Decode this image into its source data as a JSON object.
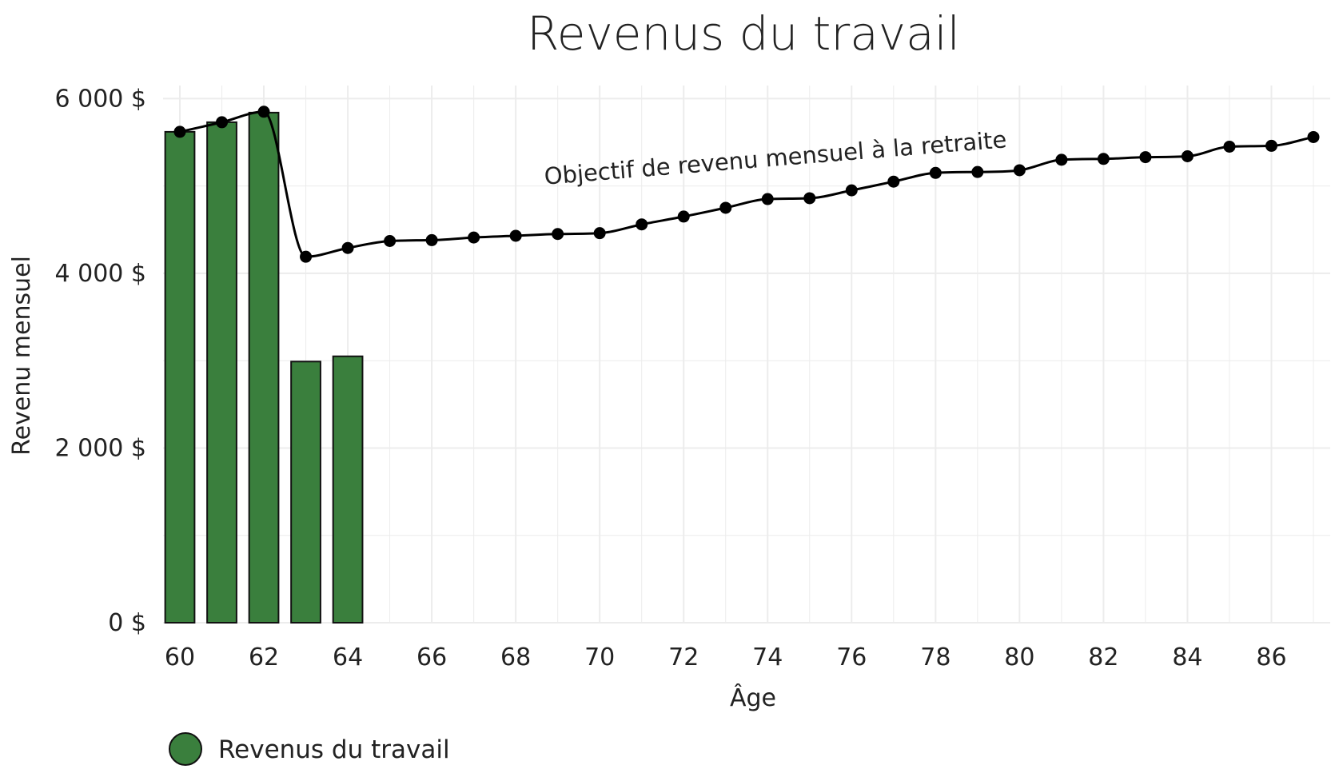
{
  "chart_data": {
    "type": "bar",
    "title": "Revenus du travail",
    "xlabel": "Âge",
    "ylabel": "Revenu mensuel",
    "xlim": [
      59.6,
      87.4
    ],
    "ylim": [
      0,
      6150
    ],
    "x_ticks": [
      60,
      62,
      64,
      66,
      68,
      70,
      72,
      74,
      76,
      78,
      80,
      82,
      84,
      86
    ],
    "y_ticks": [
      {
        "value": 0,
        "label": "0 $"
      },
      {
        "value": 2000,
        "label": "2 000 $"
      },
      {
        "value": 4000,
        "label": "4 000 $"
      },
      {
        "value": 6000,
        "label": "6 000 $"
      }
    ],
    "grid": true,
    "legend_position": "bottom-left",
    "bar_color": "#3a7f3d",
    "line_color": "#000000",
    "bars": {
      "name": "Revenus du travail",
      "x": [
        60,
        61,
        62,
        63,
        64
      ],
      "values": [
        5620,
        5730,
        5840,
        2990,
        3050
      ]
    },
    "line": {
      "x": [
        60,
        61,
        62,
        63,
        64,
        65,
        66,
        67,
        68,
        69,
        70,
        71,
        72,
        73,
        74,
        75,
        76,
        77,
        78,
        79,
        80,
        81,
        82,
        83,
        84,
        85,
        86,
        87
      ],
      "values": [
        5620,
        5730,
        5850,
        4190,
        4290,
        4370,
        4380,
        4410,
        4430,
        4450,
        4460,
        4560,
        4650,
        4750,
        4850,
        4860,
        4950,
        5050,
        5150,
        5160,
        5180,
        5300,
        5310,
        5330,
        5340,
        5450,
        5460,
        5560
      ]
    },
    "annotation": {
      "text": "Objectif de revenu mensuel à la retraite",
      "x": 74.2,
      "y": 5230,
      "angle": -4.6
    }
  }
}
